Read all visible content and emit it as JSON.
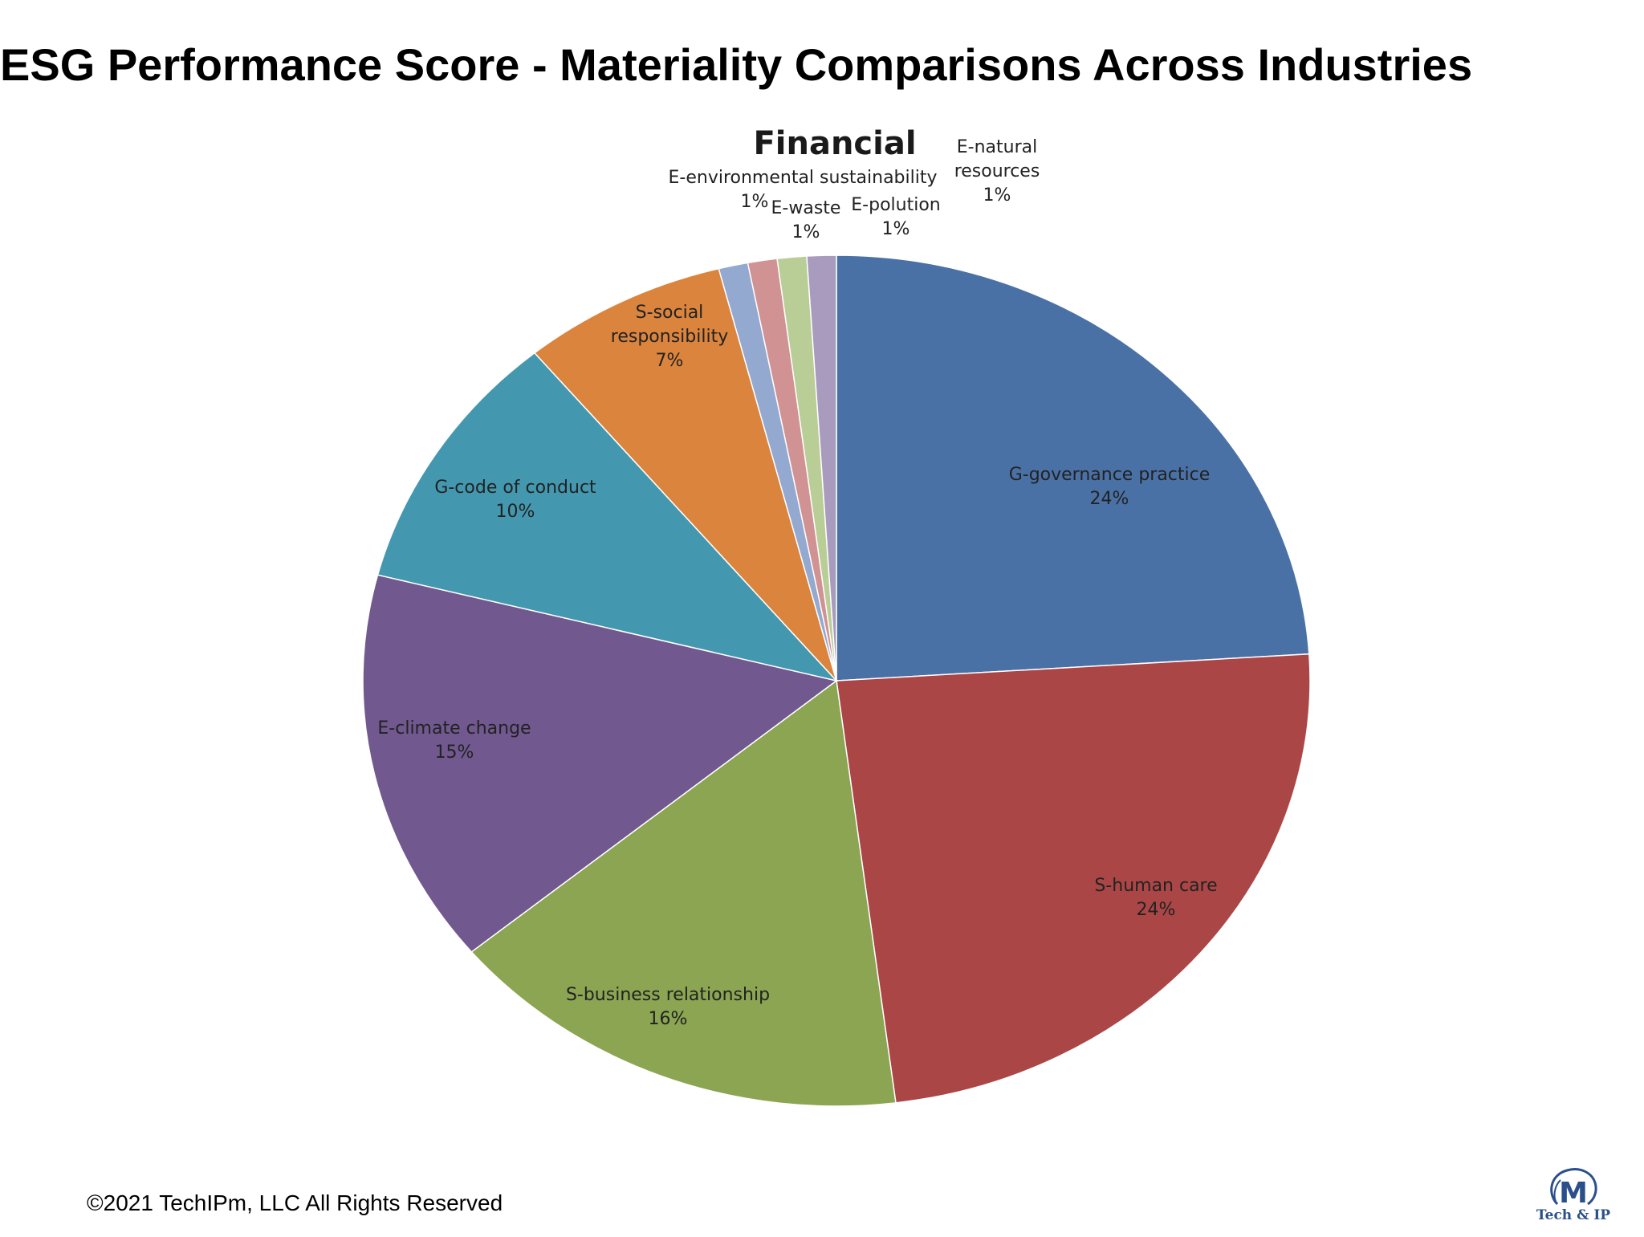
{
  "slide": {
    "title": "ESG Performance Score - Materiality Comparisons Across Industries",
    "footer": "©2021 TechIPm, LLC All Rights Reserved",
    "logo": {
      "letter": "M",
      "text": "Tech & IP"
    }
  },
  "chart_data": {
    "type": "pie",
    "title": "Financial",
    "legend": "none",
    "slices": [
      {
        "label": "G-governance practice",
        "value": 24,
        "percent_label": "24%",
        "color": "#4a71a6"
      },
      {
        "label": "S-human care",
        "value": 24,
        "percent_label": "24%",
        "color": "#ab4646"
      },
      {
        "label": "S-business relationship",
        "value": 16,
        "percent_label": "16%",
        "color": "#8ba552"
      },
      {
        "label": "E-climate change",
        "value": 15,
        "percent_label": "15%",
        "color": "#71588f"
      },
      {
        "label": "G-code of conduct",
        "value": 10,
        "percent_label": "10%",
        "color": "#4398b0"
      },
      {
        "label": "S-social responsibility",
        "value": 7,
        "percent_label": "7%",
        "color": "#db843d"
      },
      {
        "label": "E-environmental sustainability",
        "value": 1,
        "percent_label": "1%",
        "color": "#93a9d0"
      },
      {
        "label": "E-waste",
        "value": 1,
        "percent_label": "1%",
        "color": "#d09292"
      },
      {
        "label": "E-polution",
        "value": 1,
        "percent_label": "1%",
        "color": "#b9cd96"
      },
      {
        "label": "E-natural resources",
        "value": 1,
        "percent_label": "1%",
        "color": "#a99bbd"
      }
    ]
  }
}
